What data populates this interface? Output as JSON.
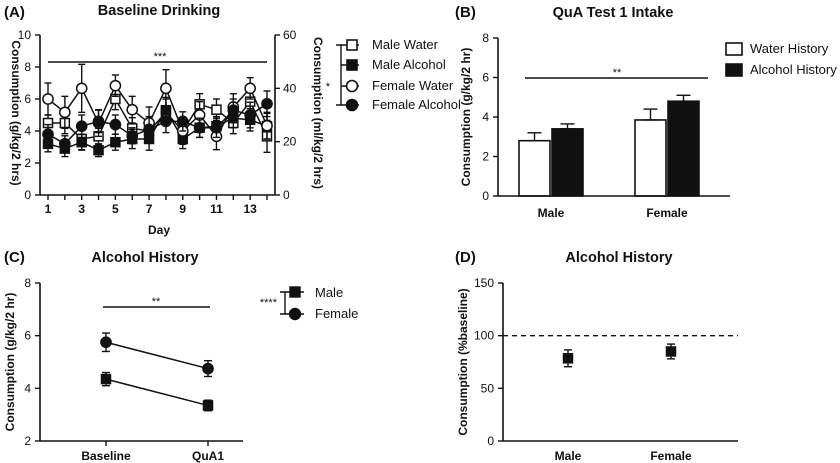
{
  "chart_data": [
    {
      "panel": "(A)",
      "type": "line",
      "title": "Baseline Drinking",
      "xlabel": "Day",
      "ylabel": "Consumption (g/kg/2 hrs)",
      "y2label": "Consumption (ml/kg/2 hrs)",
      "x": [
        1,
        2,
        3,
        4,
        5,
        6,
        7,
        8,
        9,
        10,
        11,
        12,
        13,
        14
      ],
      "xticks": [
        "1",
        "3",
        "5",
        "7",
        "9",
        "11",
        "13"
      ],
      "ylim": [
        0,
        10
      ],
      "yticks": [
        "0",
        "2",
        "4",
        "6",
        "8",
        "10"
      ],
      "y2lim": [
        0,
        60
      ],
      "y2ticks": [
        "0",
        "20",
        "40",
        "60"
      ],
      "significance": "***",
      "legend_significance": "*",
      "series": [
        {
          "name": "Male Water",
          "axis": "right",
          "marker": "square-open",
          "values": [
            27,
            27,
            21,
            22,
            36,
            25,
            24,
            31,
            24,
            34,
            32,
            27,
            35,
            22
          ],
          "errors": [
            3,
            4,
            4,
            3,
            4,
            4,
            4,
            5,
            4,
            4,
            4,
            4,
            4,
            6
          ]
        },
        {
          "name": "Male Alcohol",
          "axis": "left",
          "marker": "square-filled",
          "values": [
            3.2,
            2.9,
            3.3,
            2.8,
            3.3,
            3.5,
            3.5,
            5.3,
            3.5,
            4.2,
            4.3,
            4.8,
            4.7,
            4.3
          ],
          "errors": [
            0.5,
            0.5,
            0.5,
            0.4,
            0.5,
            0.6,
            0.7,
            0.8,
            0.6,
            0.6,
            0.6,
            0.6,
            0.7,
            0.8
          ]
        },
        {
          "name": "Female Water",
          "axis": "right",
          "marker": "circle-open",
          "values": [
            36,
            31,
            40,
            27,
            41,
            32,
            27,
            40,
            24,
            30,
            22,
            33,
            40,
            26
          ],
          "errors": [
            6,
            6,
            9,
            5,
            4,
            5,
            6,
            7,
            5,
            5,
            5,
            5,
            4,
            5
          ]
        },
        {
          "name": "Female Alcohol",
          "axis": "left",
          "marker": "circle-filled",
          "values": [
            3.8,
            3.2,
            4.3,
            4.6,
            4.4,
            3.7,
            4.1,
            4.6,
            4.6,
            4.2,
            4.2,
            5.3,
            5.0,
            5.7
          ],
          "errors": [
            0.6,
            0.5,
            0.7,
            0.7,
            0.6,
            0.5,
            0.8,
            0.7,
            0.6,
            0.6,
            0.6,
            0.7,
            0.8,
            0.8
          ]
        }
      ]
    },
    {
      "panel": "(B)",
      "type": "bar",
      "title": "QuA Test 1 Intake",
      "categories": [
        "Male",
        "Female"
      ],
      "ylabel": "Consumption (g/kg/2 hr)",
      "ylim": [
        0,
        8
      ],
      "yticks": [
        "0",
        "2",
        "4",
        "6",
        "8"
      ],
      "significance": "**",
      "series": [
        {
          "name": "Water History",
          "fill": "#ffffff",
          "values": [
            2.8,
            3.85
          ],
          "errors": [
            0.4,
            0.55
          ]
        },
        {
          "name": "Alcohol History",
          "fill": "#111111",
          "values": [
            3.4,
            4.8
          ],
          "errors": [
            0.25,
            0.3
          ]
        }
      ]
    },
    {
      "panel": "(C)",
      "type": "line",
      "title": "Alcohol History",
      "categories": [
        "Baseline",
        "QuA1"
      ],
      "ylabel": "Consumption (g/kg/2 hr)",
      "ylim": [
        2,
        8
      ],
      "yticks": [
        "2",
        "4",
        "6",
        "8"
      ],
      "significance": "**",
      "legend_significance": "****",
      "series": [
        {
          "name": "Male",
          "marker": "square-filled",
          "values": [
            4.35,
            3.35
          ],
          "errors": [
            0.25,
            0.2
          ]
        },
        {
          "name": "Female",
          "marker": "circle-filled",
          "values": [
            5.75,
            4.75
          ],
          "errors": [
            0.35,
            0.3
          ]
        }
      ]
    },
    {
      "panel": "(D)",
      "type": "scatter",
      "title": "Alcohol History",
      "categories": [
        "Male",
        "Female"
      ],
      "ylabel": "Consumption (%baseline)",
      "ylim": [
        0,
        150
      ],
      "yticks": [
        "0",
        "50",
        "100",
        "150"
      ],
      "reference_line": 100,
      "series": [
        {
          "name": "Alcohol History",
          "marker": "square-filled",
          "values": [
            78.5,
            85
          ],
          "errors": [
            8,
            7
          ]
        }
      ]
    }
  ]
}
